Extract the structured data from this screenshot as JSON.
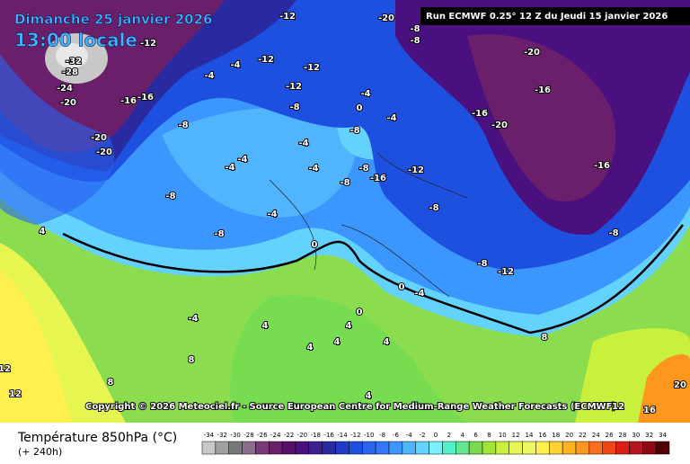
{
  "header": {
    "date": "Dimanche 25 janvier 2026",
    "time": "13:00 locale",
    "run": "Run ECMWF 0.25° 12 Z du Jeudi 15 janvier 2026"
  },
  "copyright": "Copyright © 2026 Meteociel.fr - Source European Centre for Medium-Range Weather Forecasts (ECMWF)",
  "legend": {
    "title": "Température 850hPa (°C)",
    "lead": "(+ 240h)",
    "ticks": [
      -34,
      -32,
      -30,
      -28,
      -26,
      -24,
      -22,
      -20,
      -18,
      -16,
      -14,
      -12,
      -10,
      -8,
      -6,
      -4,
      -2,
      0,
      2,
      4,
      6,
      8,
      10,
      12,
      14,
      16,
      18,
      20,
      22,
      24,
      26,
      28,
      30,
      32,
      34
    ],
    "colors": [
      "#c8c8c8",
      "#a0a0a0",
      "#787878",
      "#8c6e8c",
      "#7a3a7a",
      "#6a1f6a",
      "#5a0f6a",
      "#4a1080",
      "#3a2090",
      "#2a2aa0",
      "#1e3cc8",
      "#1e50e0",
      "#2864f0",
      "#3278ff",
      "#3c96ff",
      "#50b4ff",
      "#64d2ff",
      "#78f0ff",
      "#50f0c8",
      "#64e68c",
      "#78dc50",
      "#a0e632",
      "#c8f03c",
      "#e6f550",
      "#f0f564",
      "#fff050",
      "#ffd232",
      "#ffb41e",
      "#ff961e",
      "#ff6e1e",
      "#f04614",
      "#dc1e14",
      "#b4141e",
      "#8c0a14",
      "#500000"
    ]
  },
  "contour_labels": [
    -20,
    -8,
    -8,
    -12,
    -12,
    -32,
    -28,
    -24,
    -20,
    -16,
    -16,
    -20,
    -20,
    -12,
    -12,
    -12,
    -8,
    -4,
    -4,
    -4,
    -4,
    -8,
    0,
    -16,
    -20,
    -16,
    -20,
    -16,
    -8,
    -12,
    -16,
    -8,
    -8,
    -8,
    -4,
    -4,
    -4,
    -4,
    -8,
    -8,
    -8,
    -4,
    -8,
    -12,
    -4,
    0,
    0,
    0,
    -4,
    4,
    4,
    4,
    4,
    4,
    8,
    8,
    12,
    12,
    12,
    16,
    20,
    4,
    4,
    8
  ]
}
